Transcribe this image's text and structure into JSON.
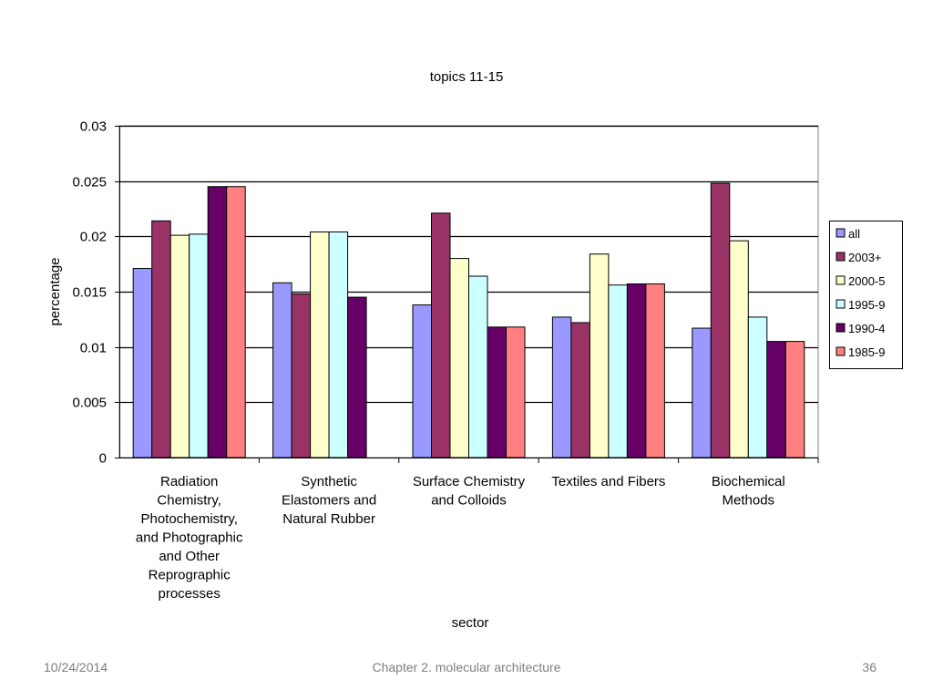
{
  "chart_data": {
    "type": "bar",
    "title": "topics 11-15",
    "xlabel": "sector",
    "ylabel": "percentage",
    "ylim": [
      0,
      0.03
    ],
    "yticks": [
      "0",
      "0.005",
      "0.01",
      "0.015",
      "0.02",
      "0.025",
      "0.03"
    ],
    "ytick_values": [
      0,
      0.005,
      0.01,
      0.015,
      0.02,
      0.025,
      0.03
    ],
    "grid": true,
    "legend_position": "right",
    "categories": [
      [
        "Radiation",
        "Chemistry,",
        "Photochemistry,",
        "and Photographic",
        "and Other",
        "Reprographic",
        "processes"
      ],
      [
        "Synthetic",
        "Elastomers and",
        "Natural Rubber"
      ],
      [
        "Surface Chemistry",
        "and Colloids"
      ],
      [
        "Textiles and Fibers"
      ],
      [
        "Biochemical",
        "Methods"
      ]
    ],
    "series": [
      {
        "name": "all",
        "color": "#9999ff",
        "values": [
          0.0171,
          0.0158,
          0.0138,
          0.0127,
          0.0117
        ]
      },
      {
        "name": "2003+",
        "color": "#993366",
        "values": [
          0.0214,
          0.0148,
          0.0221,
          0.0122,
          0.0248
        ]
      },
      {
        "name": "2000-5",
        "color": "#ffffcc",
        "values": [
          0.0201,
          0.0204,
          0.018,
          0.0184,
          0.0196
        ]
      },
      {
        "name": "1995-9",
        "color": "#ccffff",
        "values": [
          0.0202,
          0.0204,
          0.0164,
          0.0156,
          0.0127
        ]
      },
      {
        "name": "1990-4",
        "color": "#660066",
        "values": [
          0.0245,
          0.0145,
          0.0118,
          0.0157,
          0.0105
        ]
      },
      {
        "name": "1985-9",
        "color": "#ff8080",
        "values": [
          0.0245,
          null,
          0.0118,
          0.0157,
          0.0105
        ]
      }
    ]
  },
  "footer": {
    "date": "10/24/2014",
    "title": "Chapter 2. molecular architecture",
    "page": "36"
  }
}
